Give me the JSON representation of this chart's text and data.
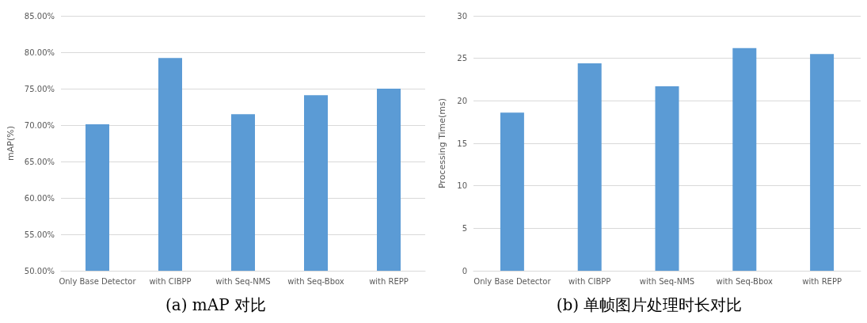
{
  "chart_data": [
    {
      "type": "bar",
      "title": "(a) mAP 对比",
      "ylabel": "mAP(%)",
      "categories": [
        "Only Base Detector",
        "with CIBPP",
        "with Seq-NMS",
        "with Seq-Bbox",
        "with REPP"
      ],
      "values": [
        70.1,
        79.2,
        71.5,
        74.1,
        75.0
      ],
      "color": "#5b9bd5",
      "ylim": [
        50,
        85
      ],
      "yticks": [
        {
          "value": 50,
          "label": "50.00%"
        },
        {
          "value": 55,
          "label": "55.00%"
        },
        {
          "value": 60,
          "label": "60.00%"
        },
        {
          "value": 65,
          "label": "65.00%"
        },
        {
          "value": 70,
          "label": "70.00%"
        },
        {
          "value": 75,
          "label": "75.00%"
        },
        {
          "value": 80,
          "label": "80.00%"
        },
        {
          "value": 85,
          "label": "85.00%"
        }
      ],
      "grid": "y"
    },
    {
      "type": "bar",
      "title": "(b) 单帧图片处理时长对比",
      "ylabel": "Processing Time(ms)",
      "categories": [
        "Only Base Detector",
        "with CIBPP",
        "with Seq-NMS",
        "with Seq-Bbox",
        "with REPP"
      ],
      "values": [
        18.6,
        24.4,
        21.7,
        26.2,
        25.5
      ],
      "color": "#5b9bd5",
      "ylim": [
        0,
        30
      ],
      "yticks": [
        0,
        5,
        10,
        15,
        20,
        25,
        30
      ],
      "grid": "y"
    }
  ]
}
